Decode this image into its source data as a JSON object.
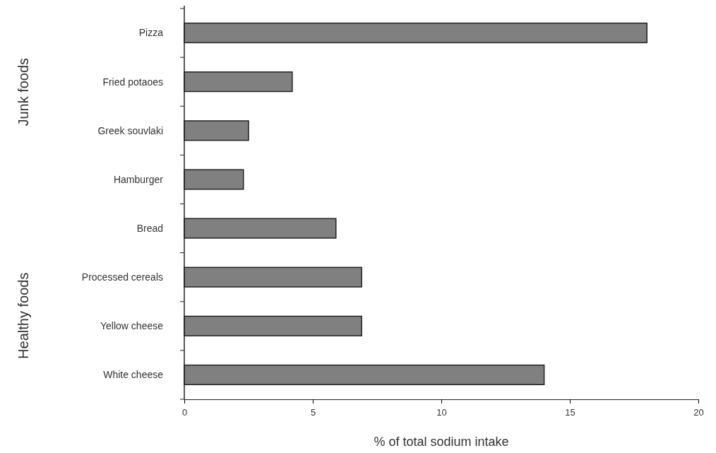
{
  "chart_data": {
    "type": "bar",
    "orientation": "horizontal",
    "categories": [
      "Pizza",
      "Fried potaoes",
      "Greek souvlaki",
      "Hamburger",
      "Bread",
      "Processed cereals",
      "Yellow cheese",
      "White cheese"
    ],
    "values": [
      18,
      4.2,
      2.5,
      2.3,
      5.9,
      6.9,
      6.9,
      14.0
    ],
    "color": "#808080",
    "xlabel": "% of total sodium intake",
    "xlim": [
      0,
      20
    ],
    "xticks": [
      0,
      5,
      10,
      15,
      20
    ],
    "annotations": [
      "Junk foods",
      "Healthy foods"
    ],
    "grid": false
  }
}
